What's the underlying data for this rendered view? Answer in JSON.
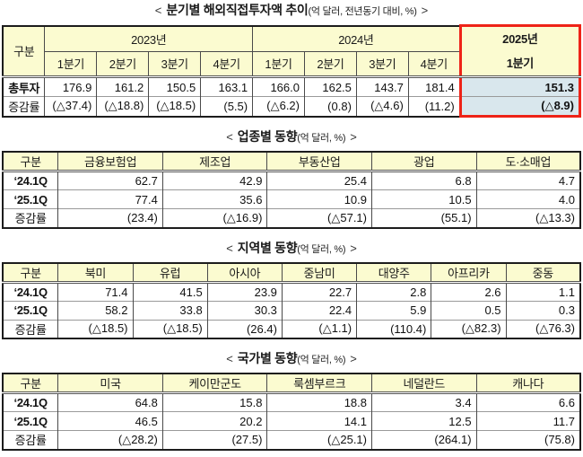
{
  "colors": {
    "header_bg": "#FBFBD0",
    "highlight_bg": "#D9E7ED",
    "highlight_border": "#EE2317",
    "table_border": "#1C1C1C",
    "grid_line": "#4A4A4A",
    "row_line": "#9A9A9A"
  },
  "tables": [
    {
      "id": "quarterly",
      "title": {
        "open": "<",
        "main": "분기별 해외직접투자액 추이",
        "unit": "(억 달러, 전년동기 대비, %)",
        "close": ">"
      },
      "colWidths": [
        "7.3%",
        "9%",
        "9%",
        "9%",
        "9%",
        "9%",
        "9%",
        "9%",
        "9%",
        "20.7%"
      ],
      "headerRows": [
        [
          {
            "t": "구분",
            "rowspan": 2
          },
          {
            "t": "2023년",
            "colspan": 4
          },
          {
            "t": "2024년",
            "colspan": 4
          },
          {
            "t": "2025년\n1분기",
            "rowspan": 2,
            "cls": "hl-head"
          }
        ],
        [
          {
            "t": "1분기"
          },
          {
            "t": "2분기"
          },
          {
            "t": "3분기"
          },
          {
            "t": "4분기"
          },
          {
            "t": "1분기"
          },
          {
            "t": "2분기"
          },
          {
            "t": "3분기"
          },
          {
            "t": "4분기"
          }
        ]
      ],
      "bodyRows": [
        [
          {
            "t": "총투자",
            "cls": "rowlabel bold"
          },
          {
            "t": "176.9",
            "cls": "num"
          },
          {
            "t": "161.2",
            "cls": "num"
          },
          {
            "t": "150.5",
            "cls": "num"
          },
          {
            "t": "163.1",
            "cls": "num"
          },
          {
            "t": "166.0",
            "cls": "num"
          },
          {
            "t": "162.5",
            "cls": "num"
          },
          {
            "t": "143.7",
            "cls": "num"
          },
          {
            "t": "181.4",
            "cls": "num"
          },
          {
            "t": "151.3",
            "cls": "num hl bold"
          }
        ],
        [
          {
            "t": "증감률",
            "cls": "rowlabel"
          },
          {
            "t": "(△37.4)",
            "cls": "num"
          },
          {
            "t": "(△18.8)",
            "cls": "num"
          },
          {
            "t": "(△18.5)",
            "cls": "num"
          },
          {
            "t": "(5.5)",
            "cls": "num"
          },
          {
            "t": "(△6.2)",
            "cls": "num"
          },
          {
            "t": "(0.8)",
            "cls": "num"
          },
          {
            "t": "(△4.6)",
            "cls": "num"
          },
          {
            "t": "(11.2)",
            "cls": "num"
          },
          {
            "t": "(△8.9)",
            "cls": "num hl hl-last bold"
          }
        ]
      ]
    },
    {
      "id": "industry",
      "title": {
        "open": "<",
        "main": "업종별 동향",
        "unit": "(억 달러, %)",
        "close": ">"
      },
      "colWidths": [
        "9.6%",
        "18.1%",
        "18.1%",
        "18.1%",
        "18.1%",
        "18%"
      ],
      "headerRows": [
        [
          {
            "t": "구분"
          },
          {
            "t": "금융보험업"
          },
          {
            "t": "제조업"
          },
          {
            "t": "부동산업"
          },
          {
            "t": "광업"
          },
          {
            "t": "도·소매업"
          }
        ]
      ],
      "bodyRows": [
        [
          {
            "t": "‘24.1Q",
            "cls": "rowlabel bold"
          },
          {
            "t": "62.7",
            "cls": "num"
          },
          {
            "t": "42.9",
            "cls": "num"
          },
          {
            "t": "25.4",
            "cls": "num"
          },
          {
            "t": "6.8",
            "cls": "num"
          },
          {
            "t": "4.7",
            "cls": "num"
          }
        ],
        [
          {
            "t": "‘25.1Q",
            "cls": "rowlabel bold"
          },
          {
            "t": "77.4",
            "cls": "num"
          },
          {
            "t": "35.6",
            "cls": "num"
          },
          {
            "t": "10.9",
            "cls": "num"
          },
          {
            "t": "10.5",
            "cls": "num"
          },
          {
            "t": "4.0",
            "cls": "num"
          }
        ],
        [
          {
            "t": "증감률",
            "cls": "rowlabel"
          },
          {
            "t": "(23.4)",
            "cls": "num"
          },
          {
            "t": "(△16.9)",
            "cls": "num"
          },
          {
            "t": "(△57.1)",
            "cls": "num"
          },
          {
            "t": "(55.1)",
            "cls": "num"
          },
          {
            "t": "(△13.3)",
            "cls": "num"
          }
        ]
      ]
    },
    {
      "id": "region",
      "title": {
        "open": "<",
        "main": "지역별 동향",
        "unit": "(억 달러, %)",
        "close": ">"
      },
      "colWidths": [
        "9.6%",
        "12.92%",
        "12.92%",
        "12.92%",
        "12.92%",
        "12.92%",
        "12.92%",
        "12.88%"
      ],
      "headerRows": [
        [
          {
            "t": "구분"
          },
          {
            "t": "북미"
          },
          {
            "t": "유럽"
          },
          {
            "t": "아시아"
          },
          {
            "t": "중남미"
          },
          {
            "t": "대양주"
          },
          {
            "t": "아프리카"
          },
          {
            "t": "중동"
          }
        ]
      ],
      "bodyRows": [
        [
          {
            "t": "‘24.1Q",
            "cls": "rowlabel bold"
          },
          {
            "t": "71.4",
            "cls": "num"
          },
          {
            "t": "41.5",
            "cls": "num"
          },
          {
            "t": "23.9",
            "cls": "num"
          },
          {
            "t": "22.7",
            "cls": "num"
          },
          {
            "t": "2.8",
            "cls": "num"
          },
          {
            "t": "2.6",
            "cls": "num"
          },
          {
            "t": "1.1",
            "cls": "num"
          }
        ],
        [
          {
            "t": "‘25.1Q",
            "cls": "rowlabel bold"
          },
          {
            "t": "58.2",
            "cls": "num"
          },
          {
            "t": "33.8",
            "cls": "num"
          },
          {
            "t": "30.3",
            "cls": "num"
          },
          {
            "t": "22.4",
            "cls": "num"
          },
          {
            "t": "5.9",
            "cls": "num"
          },
          {
            "t": "0.5",
            "cls": "num"
          },
          {
            "t": "0.3",
            "cls": "num"
          }
        ],
        [
          {
            "t": "증감률",
            "cls": "rowlabel"
          },
          {
            "t": "(△18.5)",
            "cls": "num"
          },
          {
            "t": "(△18.5)",
            "cls": "num"
          },
          {
            "t": "(26.4)",
            "cls": "num"
          },
          {
            "t": "(△1.1)",
            "cls": "num"
          },
          {
            "t": "(110.4)",
            "cls": "num"
          },
          {
            "t": "(△82.3)",
            "cls": "num"
          },
          {
            "t": "(△76.3)",
            "cls": "num"
          }
        ]
      ]
    },
    {
      "id": "country",
      "title": {
        "open": "<",
        "main": "국가별 동향",
        "unit": "(억 달러, %)",
        "close": ">"
      },
      "colWidths": [
        "9.6%",
        "18.1%",
        "18.1%",
        "18.1%",
        "18.1%",
        "18%"
      ],
      "headerRows": [
        [
          {
            "t": "구분"
          },
          {
            "t": "미국"
          },
          {
            "t": "케이만군도"
          },
          {
            "t": "룩셈부르크"
          },
          {
            "t": "네덜란드"
          },
          {
            "t": "캐나다"
          }
        ]
      ],
      "bodyRows": [
        [
          {
            "t": "‘24.1Q",
            "cls": "rowlabel bold"
          },
          {
            "t": "64.8",
            "cls": "num"
          },
          {
            "t": "15.8",
            "cls": "num"
          },
          {
            "t": "18.8",
            "cls": "num"
          },
          {
            "t": "3.4",
            "cls": "num"
          },
          {
            "t": "6.6",
            "cls": "num"
          }
        ],
        [
          {
            "t": "‘25.1Q",
            "cls": "rowlabel bold"
          },
          {
            "t": "46.5",
            "cls": "num"
          },
          {
            "t": "20.2",
            "cls": "num"
          },
          {
            "t": "14.1",
            "cls": "num"
          },
          {
            "t": "12.5",
            "cls": "num"
          },
          {
            "t": "11.7",
            "cls": "num"
          }
        ],
        [
          {
            "t": "증감률",
            "cls": "rowlabel"
          },
          {
            "t": "(△28.2)",
            "cls": "num"
          },
          {
            "t": "(27.5)",
            "cls": "num"
          },
          {
            "t": "(△25.1)",
            "cls": "num"
          },
          {
            "t": "(264.1)",
            "cls": "num"
          },
          {
            "t": "(75.8)",
            "cls": "num"
          }
        ]
      ]
    }
  ]
}
